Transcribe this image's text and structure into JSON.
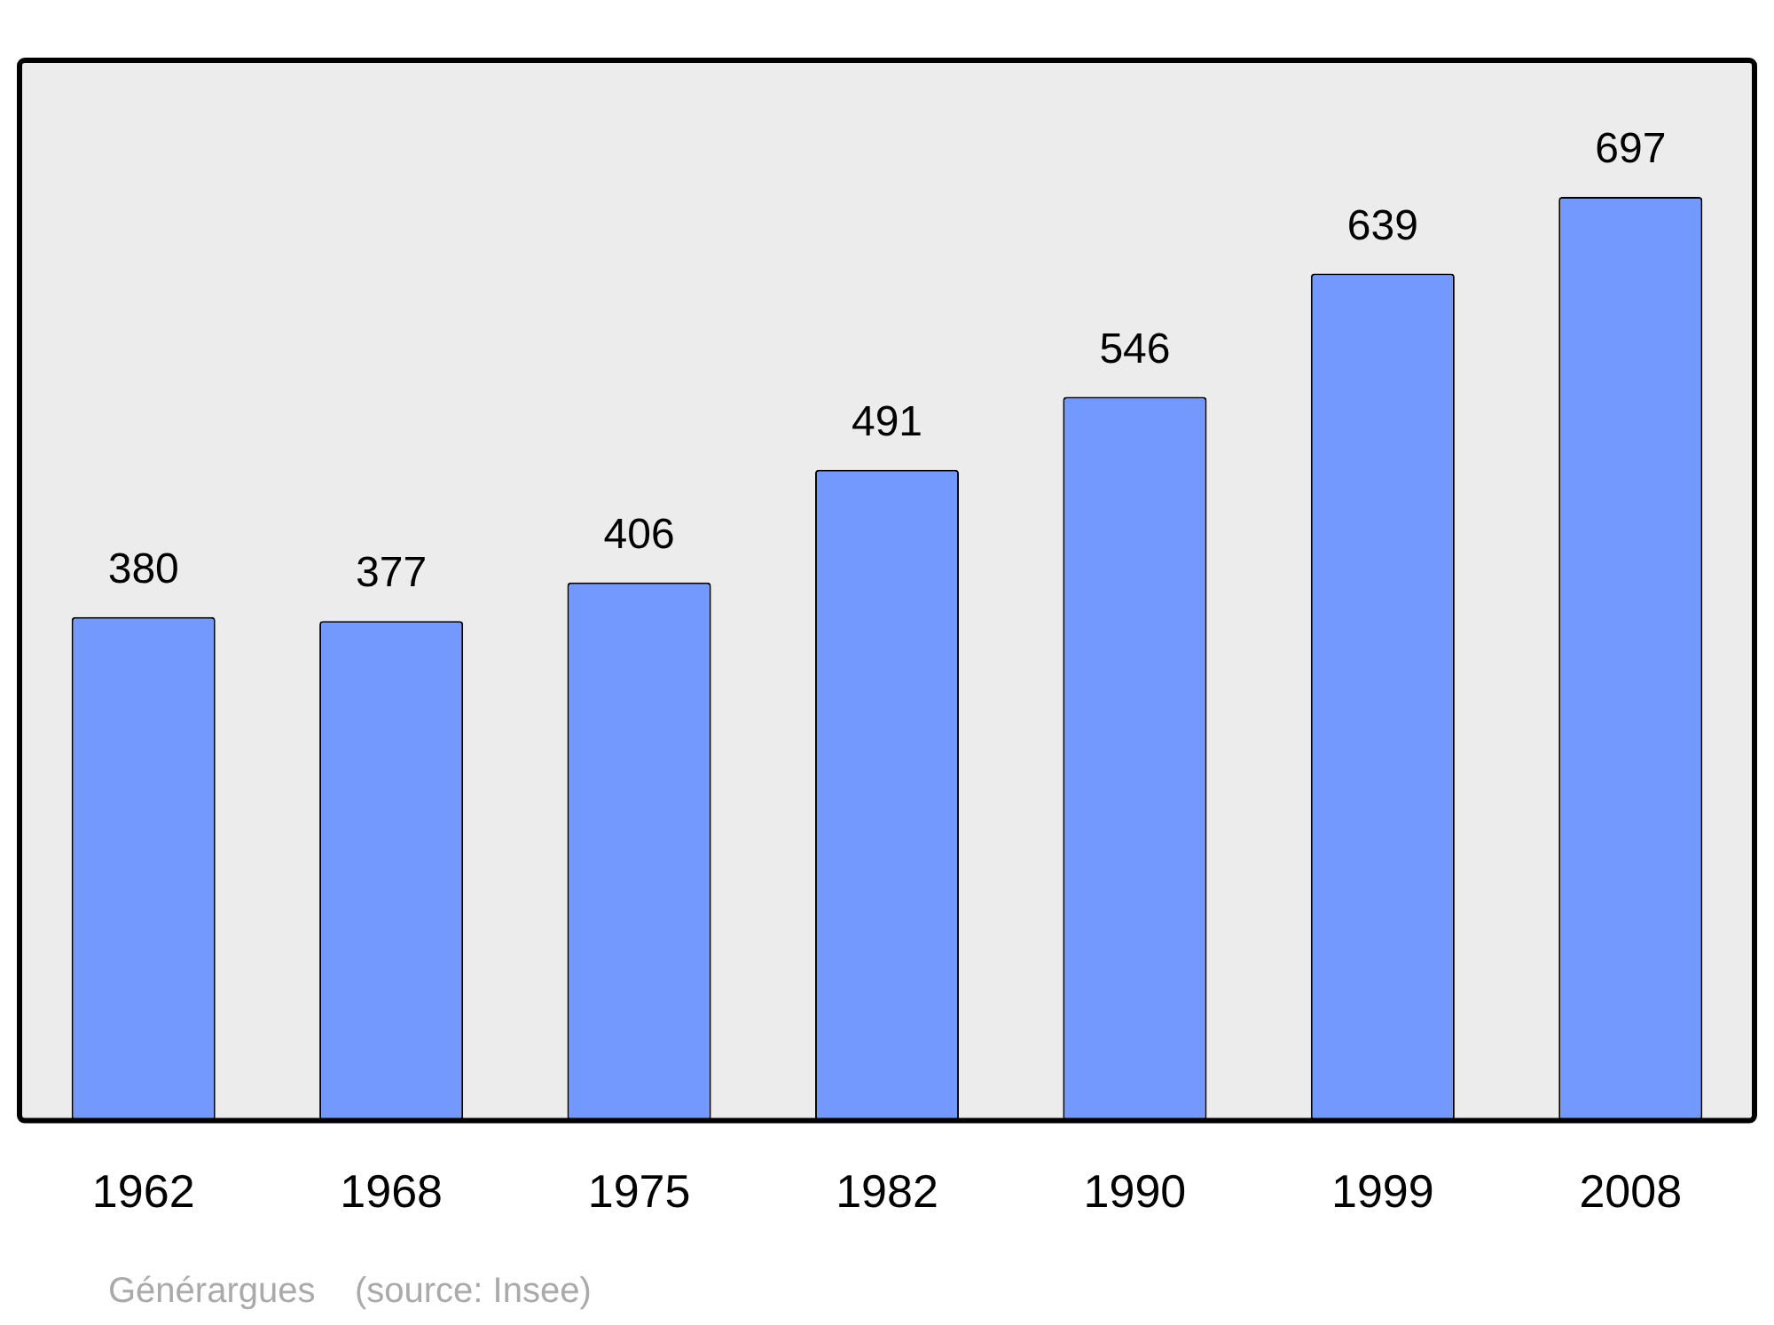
{
  "chart_data": {
    "type": "bar",
    "categories": [
      "1962",
      "1968",
      "1975",
      "1982",
      "1990",
      "1999",
      "2008"
    ],
    "values": [
      380,
      377,
      406,
      491,
      546,
      639,
      697
    ],
    "color": "#7399ff",
    "data_labels": true,
    "grid": false,
    "legend": false,
    "annotations": [
      "Générargues    (source: Insee)"
    ]
  }
}
